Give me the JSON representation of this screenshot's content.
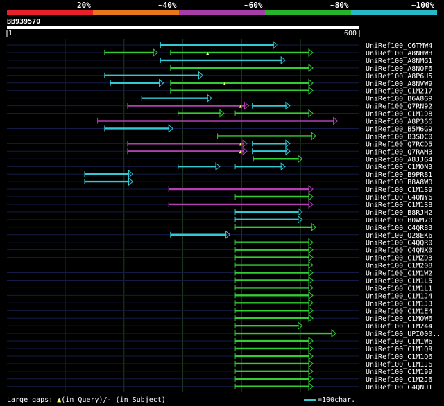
{
  "chart_data": {
    "type": "bar",
    "title": "",
    "query": {
      "id": "BB939570",
      "length": 600,
      "ruler_start": "1",
      "ruler_end": "600"
    },
    "identity_legend": [
      {
        "label": "20%",
        "color": "#e8202a"
      },
      {
        "label": "~40%",
        "color": "#e8781e"
      },
      {
        "label": "~60%",
        "color": "#a83ca8"
      },
      {
        "label": "~80%",
        "color": "#28b428"
      },
      {
        "label": "~100%",
        "color": "#28b8c8"
      }
    ],
    "xlim": [
      1,
      600
    ],
    "hits": [
      {
        "name": "UniRef100_C6TMW4",
        "segs": [
          {
            "s": 262,
            "e": 461,
            "c": "#33c8d4"
          }
        ],
        "gaps": []
      },
      {
        "name": "UniRef100_A8NHW8",
        "segs": [
          {
            "s": 167,
            "e": 257,
            "c": "#33cc33"
          },
          {
            "s": 279,
            "e": 521,
            "c": "#33cc33"
          }
        ],
        "gaps": [
          342
        ]
      },
      {
        "name": "UniRef100_A8NMG1",
        "segs": [
          {
            "s": 262,
            "e": 474,
            "c": "#33c8d4"
          }
        ],
        "gaps": []
      },
      {
        "name": "UniRef100_A8NQF6",
        "segs": [
          {
            "s": 279,
            "e": 521,
            "c": "#33cc33"
          }
        ],
        "gaps": []
      },
      {
        "name": "UniRef100_A8P6U5",
        "segs": [
          {
            "s": 167,
            "e": 334,
            "c": "#33c8d4"
          }
        ],
        "gaps": []
      },
      {
        "name": "UniRef100_A8NVW9",
        "segs": [
          {
            "s": 177,
            "e": 267,
            "c": "#33c8d4"
          },
          {
            "s": 279,
            "e": 521,
            "c": "#33cc33"
          }
        ],
        "gaps": [
          371
        ]
      },
      {
        "name": "UniRef100_C1M217",
        "segs": [
          {
            "s": 279,
            "e": 521,
            "c": "#33cc33"
          }
        ],
        "gaps": []
      },
      {
        "name": "UniRef100_B6A8G9",
        "segs": [
          {
            "s": 230,
            "e": 349,
            "c": "#33c8d4"
          }
        ],
        "gaps": []
      },
      {
        "name": "UniRef100_Q7RN92",
        "segs": [
          {
            "s": 206,
            "e": 412,
            "c": "#b040b0"
          },
          {
            "s": 418,
            "e": 482,
            "c": "#33c8d4"
          }
        ],
        "gaps": [
          398
        ]
      },
      {
        "name": "UniRef100_C1M198",
        "segs": [
          {
            "s": 292,
            "e": 370,
            "c": "#33cc33"
          },
          {
            "s": 389,
            "e": 521,
            "c": "#33cc33"
          }
        ],
        "gaps": []
      },
      {
        "name": "UniRef100_A8P366",
        "segs": [
          {
            "s": 155,
            "e": 563,
            "c": "#b040b0"
          }
        ],
        "gaps": []
      },
      {
        "name": "UniRef100_B5M6G9",
        "segs": [
          {
            "s": 167,
            "e": 283,
            "c": "#33c8d4"
          }
        ],
        "gaps": []
      },
      {
        "name": "UniRef100_B3SDC0",
        "segs": [
          {
            "s": 359,
            "e": 526,
            "c": "#33cc33"
          }
        ],
        "gaps": []
      },
      {
        "name": "UniRef100_Q7RCD5",
        "segs": [
          {
            "s": 206,
            "e": 409,
            "c": "#b040b0"
          },
          {
            "s": 418,
            "e": 482,
            "c": "#33c8d4"
          }
        ],
        "gaps": [
          398
        ]
      },
      {
        "name": "UniRef100_Q7RAM3",
        "segs": [
          {
            "s": 206,
            "e": 409,
            "c": "#b040b0"
          },
          {
            "s": 418,
            "e": 482,
            "c": "#33c8d4"
          }
        ],
        "gaps": [
          398
        ]
      },
      {
        "name": "UniRef100_A8JJG4",
        "segs": [
          {
            "s": 420,
            "e": 503,
            "c": "#33cc33"
          }
        ],
        "gaps": []
      },
      {
        "name": "UniRef100_C1MON3",
        "segs": [
          {
            "s": 292,
            "e": 363,
            "c": "#33c8d4"
          },
          {
            "s": 389,
            "e": 474,
            "c": "#33c8d4"
          }
        ],
        "gaps": []
      },
      {
        "name": "UniRef100_B9PR81",
        "segs": [
          {
            "s": 133,
            "e": 215,
            "c": "#33c8d4"
          }
        ],
        "gaps": []
      },
      {
        "name": "UniRef100_B8A8W0",
        "segs": [
          {
            "s": 133,
            "e": 215,
            "c": "#33c8d4"
          }
        ],
        "gaps": []
      },
      {
        "name": "UniRef100_C1M1S9",
        "segs": [
          {
            "s": 276,
            "e": 521,
            "c": "#b040b0"
          }
        ],
        "gaps": []
      },
      {
        "name": "UniRef100_C4QNY6",
        "segs": [
          {
            "s": 389,
            "e": 521,
            "c": "#33cc33"
          }
        ],
        "gaps": []
      },
      {
        "name": "UniRef100_C1M1S8",
        "segs": [
          {
            "s": 276,
            "e": 521,
            "c": "#b040b0"
          }
        ],
        "gaps": []
      },
      {
        "name": "UniRef100_B8RJH2",
        "segs": [
          {
            "s": 389,
            "e": 503,
            "c": "#33c8d4"
          }
        ],
        "gaps": []
      },
      {
        "name": "UniRef100_B0WM70",
        "segs": [
          {
            "s": 389,
            "e": 503,
            "c": "#33c8d4"
          }
        ],
        "gaps": []
      },
      {
        "name": "UniRef100_C4QR83",
        "segs": [
          {
            "s": 389,
            "e": 526,
            "c": "#33cc33"
          }
        ],
        "gaps": []
      },
      {
        "name": "UniRef100_Q28EK6",
        "segs": [
          {
            "s": 279,
            "e": 380,
            "c": "#33c8d4"
          }
        ],
        "gaps": []
      },
      {
        "name": "UniRef100_C4QQR0",
        "segs": [
          {
            "s": 389,
            "e": 521,
            "c": "#33cc33"
          }
        ],
        "gaps": []
      },
      {
        "name": "UniRef100_C4QNX0",
        "segs": [
          {
            "s": 389,
            "e": 521,
            "c": "#33cc33"
          }
        ],
        "gaps": []
      },
      {
        "name": "UniRef100_C1MZD3",
        "segs": [
          {
            "s": 389,
            "e": 521,
            "c": "#33cc33"
          }
        ],
        "gaps": []
      },
      {
        "name": "UniRef100_C1M208",
        "segs": [
          {
            "s": 389,
            "e": 521,
            "c": "#33cc33"
          }
        ],
        "gaps": []
      },
      {
        "name": "UniRef100_C1M1W2",
        "segs": [
          {
            "s": 389,
            "e": 521,
            "c": "#33cc33"
          }
        ],
        "gaps": []
      },
      {
        "name": "UniRef100_C1M1L5",
        "segs": [
          {
            "s": 389,
            "e": 521,
            "c": "#33cc33"
          }
        ],
        "gaps": []
      },
      {
        "name": "UniRef100_C1M1L1",
        "segs": [
          {
            "s": 389,
            "e": 521,
            "c": "#33cc33"
          }
        ],
        "gaps": []
      },
      {
        "name": "UniRef100_C1M1J4",
        "segs": [
          {
            "s": 389,
            "e": 521,
            "c": "#33cc33"
          }
        ],
        "gaps": []
      },
      {
        "name": "UniRef100_C1M1J3",
        "segs": [
          {
            "s": 389,
            "e": 521,
            "c": "#33cc33"
          }
        ],
        "gaps": []
      },
      {
        "name": "UniRef100_C1M1E4",
        "segs": [
          {
            "s": 389,
            "e": 521,
            "c": "#33cc33"
          }
        ],
        "gaps": []
      },
      {
        "name": "UniRef100_C1MOW6",
        "segs": [
          {
            "s": 389,
            "e": 521,
            "c": "#33cc33"
          }
        ],
        "gaps": []
      },
      {
        "name": "UniRef100_C1M244",
        "segs": [
          {
            "s": 389,
            "e": 503,
            "c": "#33cc33"
          }
        ],
        "gaps": []
      },
      {
        "name": "UniRef100_UPI000..",
        "segs": [
          {
            "s": 389,
            "e": 560,
            "c": "#33cc33"
          }
        ],
        "gaps": []
      },
      {
        "name": "UniRef100_C1M1W6",
        "segs": [
          {
            "s": 389,
            "e": 521,
            "c": "#33cc33"
          }
        ],
        "gaps": []
      },
      {
        "name": "UniRef100_C1M1Q9",
        "segs": [
          {
            "s": 389,
            "e": 521,
            "c": "#33cc33"
          }
        ],
        "gaps": []
      },
      {
        "name": "UniRef100_C1M1Q6",
        "segs": [
          {
            "s": 389,
            "e": 521,
            "c": "#33cc33"
          }
        ],
        "gaps": []
      },
      {
        "name": "UniRef100_C1M1J6",
        "segs": [
          {
            "s": 389,
            "e": 521,
            "c": "#33cc33"
          }
        ],
        "gaps": []
      },
      {
        "name": "UniRef100_C1M199",
        "segs": [
          {
            "s": 389,
            "e": 521,
            "c": "#33cc33"
          }
        ],
        "gaps": []
      },
      {
        "name": "UniRef100_C1M2J6",
        "segs": [
          {
            "s": 389,
            "e": 521,
            "c": "#33cc33"
          }
        ],
        "gaps": []
      },
      {
        "name": "UniRef100_C4QNU1",
        "segs": [
          {
            "s": 389,
            "e": 521,
            "c": "#33cc33"
          }
        ],
        "gaps": []
      }
    ],
    "footer": {
      "gaps_prefix": "Large gaps: ",
      "gaps_query": "(in Query)/",
      "gaps_subject": "- (in Subject)",
      "scale": "=100char."
    }
  }
}
